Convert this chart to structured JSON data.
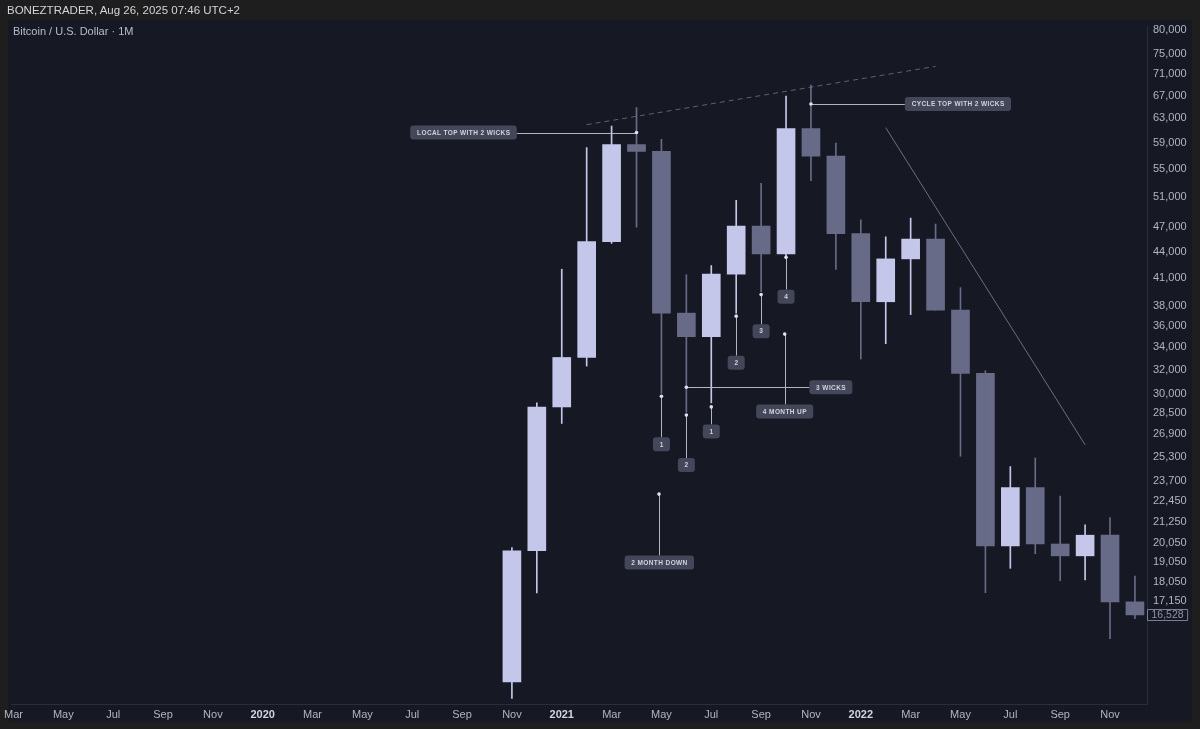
{
  "chart_data": {
    "type": "candlestick",
    "title": "Bitcoin / U.S. Dollar · 1M",
    "x": [
      "2020-11",
      "2020-12",
      "2021-01",
      "2021-02",
      "2021-03",
      "2021-04",
      "2021-05",
      "2021-06",
      "2021-07",
      "2021-08",
      "2021-09",
      "2021-10",
      "2021-11",
      "2021-12",
      "2022-01",
      "2022-02",
      "2022-03",
      "2022-04",
      "2022-05",
      "2022-06",
      "2022-07",
      "2022-08",
      "2022-09",
      "2022-10",
      "2022-11",
      "2022-12"
    ],
    "ohlc": [
      [
        13800,
        19820,
        13200,
        19650
      ],
      [
        19650,
        29270,
        17540,
        28950
      ],
      [
        28950,
        41960,
        27690,
        33080
      ],
      [
        33080,
        58240,
        32320,
        45200
      ],
      [
        45200,
        61710,
        45000,
        58730
      ],
      [
        58730,
        64860,
        46990,
        57660
      ],
      [
        57660,
        59550,
        30030,
        37280
      ],
      [
        37280,
        41340,
        28550,
        34990
      ],
      [
        34990,
        42380,
        29270,
        41410
      ],
      [
        41410,
        50530,
        37280,
        47140
      ],
      [
        47140,
        52880,
        39510,
        43730
      ],
      [
        43730,
        66910,
        43330,
        61310
      ],
      [
        61310,
        68930,
        53270,
        56910
      ],
      [
        56910,
        58960,
        41930,
        46180
      ],
      [
        46180,
        47930,
        32940,
        38440
      ],
      [
        38440,
        45800,
        34330,
        43150
      ],
      [
        43150,
        48170,
        37130,
        45500
      ],
      [
        45500,
        47380,
        37590,
        37590
      ],
      [
        37590,
        39930,
        25350,
        31690
      ],
      [
        31690,
        31920,
        17550,
        19900
      ],
      [
        19900,
        24650,
        18740,
        23300
      ],
      [
        23300,
        25230,
        19490,
        20010
      ],
      [
        20010,
        22770,
        18120,
        19380
      ],
      [
        19380,
        21070,
        18160,
        20490
      ],
      [
        20490,
        21490,
        15500,
        17120
      ],
      [
        17120,
        18350,
        16360,
        16528
      ]
    ],
    "colors": [
      "#c5c7ea",
      "#c5c7ea",
      "#c5c7ea",
      "#c5c7ea",
      "#c5c7ea",
      "#686b88",
      "#686b88",
      "#686b88",
      "#c5c7ea",
      "#c5c7ea",
      "#686b88",
      "#c5c7ea",
      "#686b88",
      "#686b88",
      "#686b88",
      "#c5c7ea",
      "#c5c7ea",
      "#686b88",
      "#686b88",
      "#686b88",
      "#c5c7ea",
      "#686b88",
      "#686b88",
      "#c5c7ea",
      "#686b88",
      "#686b88"
    ],
    "series": [
      {
        "type": "line",
        "x": [
          "2021-02",
          "2022-04"
        ],
        "values": [
          61960,
          72500
        ],
        "color": "#5d6072",
        "line_style": "dashed"
      },
      {
        "type": "line",
        "x": [
          "2022-02",
          "2022-10"
        ],
        "values": [
          61460,
          26140
        ],
        "color": "#6c6f80"
      }
    ],
    "log": "y",
    "xlim": [
      "2019-02-27",
      "2022-12-16"
    ],
    "xticks": [
      {
        "value": "2019-03",
        "label": "Mar"
      },
      {
        "value": "2019-05",
        "label": "May"
      },
      {
        "value": "2019-07",
        "label": "Jul"
      },
      {
        "value": "2019-09",
        "label": "Sep"
      },
      {
        "value": "2019-11",
        "label": "Nov"
      },
      {
        "value": "2020-01",
        "label": "2020"
      },
      {
        "value": "2020-03",
        "label": "Mar"
      },
      {
        "value": "2020-05",
        "label": "May"
      },
      {
        "value": "2020-07",
        "label": "Jul"
      },
      {
        "value": "2020-09",
        "label": "Sep"
      },
      {
        "value": "2020-11",
        "label": "Nov"
      },
      {
        "value": "2021-01",
        "label": "2021"
      },
      {
        "value": "2021-03",
        "label": "Mar"
      },
      {
        "value": "2021-05",
        "label": "May"
      },
      {
        "value": "2021-07",
        "label": "Jul"
      },
      {
        "value": "2021-09",
        "label": "Sep"
      },
      {
        "value": "2021-11",
        "label": "Nov"
      },
      {
        "value": "2022-01",
        "label": "2022"
      },
      {
        "value": "2022-03",
        "label": "Mar"
      },
      {
        "value": "2022-05",
        "label": "May"
      },
      {
        "value": "2022-07",
        "label": "Jul"
      },
      {
        "value": "2022-09",
        "label": "Sep"
      },
      {
        "value": "2022-11",
        "label": "Nov"
      }
    ],
    "ylim": [
      13000,
      80700
    ],
    "yticks": [
      {
        "value": 80000,
        "label": "80,000"
      },
      {
        "value": 75000,
        "label": "75,000"
      },
      {
        "value": 71000,
        "label": "71,000"
      },
      {
        "value": 67000,
        "label": "67,000"
      },
      {
        "value": 63000,
        "label": "63,000"
      },
      {
        "value": 59000,
        "label": "59,000"
      },
      {
        "value": 55000,
        "label": "55,000"
      },
      {
        "value": 51000,
        "label": "51,000"
      },
      {
        "value": 47000,
        "label": "47,000"
      },
      {
        "value": 44000,
        "label": "44,000"
      },
      {
        "value": 41000,
        "label": "41,000"
      },
      {
        "value": 38000,
        "label": "38,000"
      },
      {
        "value": 36000,
        "label": "36,000"
      },
      {
        "value": 34000,
        "label": "34,000"
      },
      {
        "value": 32000,
        "label": "32,000"
      },
      {
        "value": 30000,
        "label": "30,000"
      },
      {
        "value": 28500,
        "label": "28,500"
      },
      {
        "value": 26900,
        "label": "26,900"
      },
      {
        "value": 25300,
        "label": "25,300"
      },
      {
        "value": 23700,
        "label": "23,700"
      },
      {
        "value": 22450,
        "label": "22,450"
      },
      {
        "value": 21250,
        "label": "21,250"
      },
      {
        "value": 20050,
        "label": "20,050"
      },
      {
        "value": 19050,
        "label": "19,050"
      },
      {
        "value": 18050,
        "label": "18,050"
      },
      {
        "value": 17150,
        "label": "17,150"
      }
    ],
    "annotations": [
      "BONEZTRADER, Aug 26, 2025 07:46 UTC+2",
      {
        "text": "LOCAL TOP WITH 2 WICKS",
        "x": "2021-04",
        "y": 60650
      },
      {
        "text": "CYCLE TOP WITH 2 WICKS",
        "x": "2021-11",
        "y": 65500
      },
      {
        "text": "1",
        "x": "2021-05",
        "y": 30030
      },
      {
        "text": "2",
        "x": "2021-06",
        "y": 28550
      },
      {
        "text": "1",
        "x": "2021-07",
        "y": 29270
      },
      {
        "text": "2",
        "x": "2021-08",
        "y": 37280
      },
      {
        "text": "3",
        "x": "2021-09",
        "y": 39510
      },
      {
        "text": "4",
        "x": "2021-10",
        "y": 43330
      },
      {
        "text": "3 WICKS",
        "x": "2021-06",
        "y": 30530
      },
      "4 MONTH UP",
      "2 MONTH DOWN",
      {
        "text": "16,528",
        "x": "2022-12",
        "y": 16528
      }
    ]
  }
}
